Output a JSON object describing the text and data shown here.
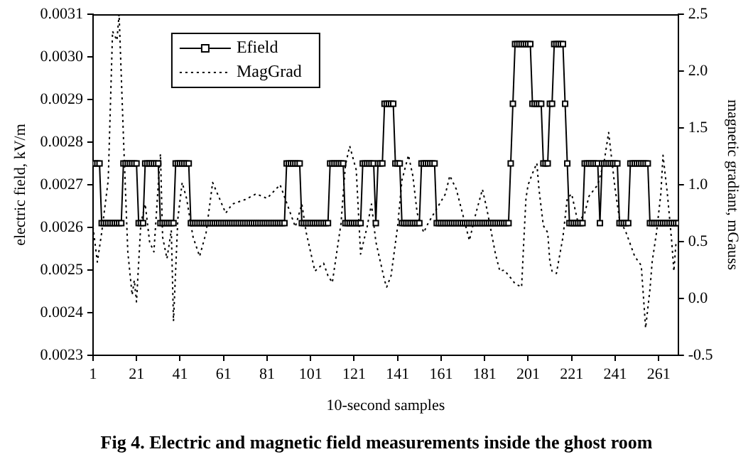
{
  "chart_data": {
    "type": "line",
    "title": "Fig 4. Electric and magnetic field measurements inside the ghost room",
    "xlabel": "10-second samples",
    "ylabel": "electric field, kV/m",
    "y2label": "magnetic gradiant, mGauss",
    "xlim": [
      1,
      270
    ],
    "xticks": [
      1,
      21,
      41,
      61,
      81,
      101,
      121,
      141,
      161,
      181,
      201,
      221,
      241,
      261
    ],
    "ylim": [
      0.0023,
      0.0031
    ],
    "yticks": [
      0.0023,
      0.0024,
      0.0025,
      0.0026,
      0.0027,
      0.0028,
      0.0029,
      {
        "value": 0.003,
        "label": "0.0030"
      },
      0.0031
    ],
    "y2lim": [
      -0.5,
      2.5
    ],
    "y2ticks": [
      -0.5,
      {
        "value": 0,
        "label": "0.0"
      },
      0.5,
      {
        "value": 1,
        "label": "1.0"
      },
      1.5,
      {
        "value": 2,
        "label": "2.0"
      },
      2.5
    ],
    "grid": false,
    "legend": "top left",
    "series": [
      {
        "name": "Efield",
        "color": "#000000",
        "marker": "square",
        "line_style": "solid",
        "x": [
          1,
          2,
          3,
          4,
          5,
          6,
          7,
          8,
          9,
          10,
          11,
          12,
          13,
          14,
          15,
          16,
          17,
          18,
          19,
          20,
          21,
          22,
          23,
          24,
          25,
          26,
          27,
          28,
          29,
          30,
          31,
          32,
          33,
          34,
          35,
          36,
          37,
          38,
          39,
          40,
          41,
          42,
          43,
          44,
          45,
          46,
          47,
          48,
          49,
          50,
          51,
          52,
          53,
          54,
          55,
          56,
          57,
          58,
          59,
          60,
          61,
          62,
          63,
          64,
          65,
          66,
          67,
          68,
          69,
          70,
          71,
          72,
          73,
          74,
          75,
          76,
          77,
          78,
          79,
          80,
          81,
          82,
          83,
          84,
          85,
          86,
          87,
          88,
          89,
          90,
          91,
          92,
          93,
          94,
          95,
          96,
          97,
          98,
          99,
          100,
          101,
          102,
          103,
          104,
          105,
          106,
          107,
          108,
          109,
          110,
          111,
          112,
          113,
          114,
          115,
          116,
          117,
          118,
          119,
          120,
          121,
          122,
          123,
          124,
          125,
          126,
          127,
          128,
          129,
          130,
          131,
          132,
          133,
          134,
          135,
          136,
          137,
          138,
          139,
          140,
          141,
          142,
          143,
          144,
          145,
          146,
          147,
          148,
          149,
          150,
          151,
          152,
          153,
          154,
          155,
          156,
          157,
          158,
          159,
          160,
          161,
          162,
          163,
          164,
          165,
          166,
          167,
          168,
          169,
          170,
          171,
          172,
          173,
          174,
          175,
          176,
          177,
          178,
          179,
          180,
          181,
          182,
          183,
          184,
          185,
          186,
          187,
          188,
          189,
          190,
          191,
          192,
          193,
          194,
          195,
          196,
          197,
          198,
          199,
          200,
          201,
          202,
          203,
          204,
          205,
          206,
          207,
          208,
          209,
          210,
          211,
          212,
          213,
          214,
          215,
          216,
          217,
          218,
          219,
          220,
          221,
          222,
          223,
          224,
          225,
          226,
          227,
          228,
          229,
          230,
          231,
          232,
          233,
          234,
          235,
          236,
          237,
          238,
          239,
          240,
          241,
          242,
          243,
          244,
          245,
          246,
          247,
          248,
          249,
          250,
          251,
          252,
          253,
          254,
          255,
          256,
          257,
          258,
          259,
          260,
          261,
          262,
          263,
          264,
          265,
          266,
          267,
          268,
          269,
          270
        ],
        "values": [
          0.00275,
          0.00275,
          0.00275,
          0.00275,
          0.00261,
          0.00261,
          0.00261,
          0.00261,
          0.00261,
          0.00261,
          0.00261,
          0.00261,
          0.00261,
          0.00261,
          0.00275,
          0.00275,
          0.00275,
          0.00275,
          0.00275,
          0.00275,
          0.00275,
          0.00261,
          0.00261,
          0.00261,
          0.00275,
          0.00275,
          0.00275,
          0.00275,
          0.00275,
          0.00275,
          0.00275,
          0.00261,
          0.00261,
          0.00261,
          0.00261,
          0.00261,
          0.00261,
          0.00261,
          0.00275,
          0.00275,
          0.00275,
          0.00275,
          0.00275,
          0.00275,
          0.00275,
          0.00261,
          0.00261,
          0.00261,
          0.00261,
          0.00261,
          0.00261,
          0.00261,
          0.00261,
          0.00261,
          0.00261,
          0.00261,
          0.00261,
          0.00261,
          0.00261,
          0.00261,
          0.00261,
          0.00261,
          0.00261,
          0.00261,
          0.00261,
          0.00261,
          0.00261,
          0.00261,
          0.00261,
          0.00261,
          0.00261,
          0.00261,
          0.00261,
          0.00261,
          0.00261,
          0.00261,
          0.00261,
          0.00261,
          0.00261,
          0.00261,
          0.00261,
          0.00261,
          0.00261,
          0.00261,
          0.00261,
          0.00261,
          0.00261,
          0.00261,
          0.00261,
          0.00275,
          0.00275,
          0.00275,
          0.00275,
          0.00275,
          0.00275,
          0.00275,
          0.00261,
          0.00261,
          0.00261,
          0.00261,
          0.00261,
          0.00261,
          0.00261,
          0.00261,
          0.00261,
          0.00261,
          0.00261,
          0.00261,
          0.00261,
          0.00275,
          0.00275,
          0.00275,
          0.00275,
          0.00275,
          0.00275,
          0.00275,
          0.00261,
          0.00261,
          0.00261,
          0.00261,
          0.00261,
          0.00261,
          0.00261,
          0.00261,
          0.00275,
          0.00275,
          0.00275,
          0.00275,
          0.00275,
          0.00275,
          0.00261,
          0.00275,
          0.00275,
          0.00275,
          0.00289,
          0.00289,
          0.00289,
          0.00289,
          0.00289,
          0.00275,
          0.00275,
          0.00275,
          0.00261,
          0.00261,
          0.00261,
          0.00261,
          0.00261,
          0.00261,
          0.00261,
          0.00261,
          0.00261,
          0.00275,
          0.00275,
          0.00275,
          0.00275,
          0.00275,
          0.00275,
          0.00275,
          0.00261,
          0.00261,
          0.00261,
          0.00261,
          0.00261,
          0.00261,
          0.00261,
          0.00261,
          0.00261,
          0.00261,
          0.00261,
          0.00261,
          0.00261,
          0.00261,
          0.00261,
          0.00261,
          0.00261,
          0.00261,
          0.00261,
          0.00261,
          0.00261,
          0.00261,
          0.00261,
          0.00261,
          0.00261,
          0.00261,
          0.00261,
          0.00261,
          0.00261,
          0.00261,
          0.00261,
          0.00261,
          0.00261,
          0.00261,
          0.00275,
          0.00289,
          0.00303,
          0.00303,
          0.00303,
          0.00303,
          0.00303,
          0.00303,
          0.00303,
          0.00303,
          0.00289,
          0.00289,
          0.00289,
          0.00289,
          0.00289,
          0.00275,
          0.00275,
          0.00275,
          0.00289,
          0.00289,
          0.00303,
          0.00303,
          0.00303,
          0.00303,
          0.00303,
          0.00289,
          0.00275,
          0.00261,
          0.00261,
          0.00261,
          0.00261,
          0.00261,
          0.00261,
          0.00261,
          0.00275,
          0.00275,
          0.00275,
          0.00275,
          0.00275,
          0.00275,
          0.00275,
          0.00261,
          0.00275,
          0.00275,
          0.00275,
          0.00275,
          0.00275,
          0.00275,
          0.00275,
          0.00275,
          0.00261,
          0.00261,
          0.00261,
          0.00261,
          0.00261,
          0.00275,
          0.00275,
          0.00275,
          0.00275,
          0.00275,
          0.00275,
          0.00275,
          0.00275,
          0.00275,
          0.00261,
          0.00261,
          0.00261,
          0.00261,
          0.00261,
          0.00261,
          0.00261,
          0.00261,
          0.00261,
          0.00261,
          0.00261,
          0.00261,
          0.00261,
          0.00261
        ]
      },
      {
        "name": "MagGrad",
        "color": "#000000",
        "marker": "none",
        "line_style": "dotted",
        "axis": "y2",
        "x": [
          1,
          3,
          5,
          8,
          10,
          12,
          13,
          15,
          17,
          19,
          20,
          21,
          23,
          25,
          27,
          29,
          31,
          32,
          33,
          35,
          37,
          38,
          40,
          42,
          44,
          47,
          50,
          53,
          56,
          62,
          65,
          71,
          76,
          81,
          87,
          94,
          97,
          99,
          103,
          107,
          109,
          111,
          115,
          117,
          119,
          122,
          124,
          127,
          129,
          131,
          135,
          136,
          138,
          141,
          143,
          146,
          148,
          150,
          153,
          155,
          163,
          165,
          168,
          172,
          174,
          177,
          180,
          182,
          186,
          188,
          190,
          193,
          195,
          198,
          199,
          200,
          201,
          203,
          205,
          206,
          208,
          210,
          211,
          212,
          214,
          217,
          219,
          221,
          224,
          227,
          229,
          233,
          236,
          238,
          241,
          243,
          246,
          250,
          253,
          255,
          257,
          258,
          260,
          262,
          263,
          265,
          267,
          268,
          269
        ],
        "values": [
          0.63,
          0.32,
          0.58,
          1.04,
          2.35,
          2.27,
          2.5,
          1.42,
          0.41,
          0.03,
          0.16,
          -0.03,
          0.66,
          0.83,
          0.5,
          0.41,
          1.0,
          1.27,
          0.54,
          0.35,
          0.6,
          -0.2,
          0.7,
          1.02,
          0.88,
          0.54,
          0.37,
          0.58,
          1.02,
          0.75,
          0.83,
          0.87,
          0.92,
          0.88,
          1.0,
          0.63,
          0.83,
          0.58,
          0.24,
          0.31,
          0.2,
          0.14,
          0.66,
          1.17,
          1.34,
          1.13,
          0.39,
          0.63,
          0.83,
          0.5,
          0.16,
          0.1,
          0.2,
          0.63,
          1.04,
          1.26,
          1.08,
          0.75,
          0.58,
          0.66,
          0.92,
          1.08,
          0.96,
          0.66,
          0.51,
          0.75,
          0.96,
          0.79,
          0.39,
          0.24,
          0.25,
          0.18,
          0.13,
          0.1,
          0.5,
          0.88,
          1.0,
          1.1,
          1.19,
          0.96,
          0.64,
          0.58,
          0.32,
          0.24,
          0.22,
          0.54,
          0.88,
          0.92,
          0.66,
          0.75,
          0.9,
          1.0,
          1.21,
          1.46,
          0.96,
          0.7,
          0.58,
          0.37,
          0.29,
          -0.26,
          0.08,
          0.32,
          0.58,
          0.92,
          1.26,
          0.92,
          0.5,
          0.24,
          0.5
        ]
      }
    ]
  }
}
